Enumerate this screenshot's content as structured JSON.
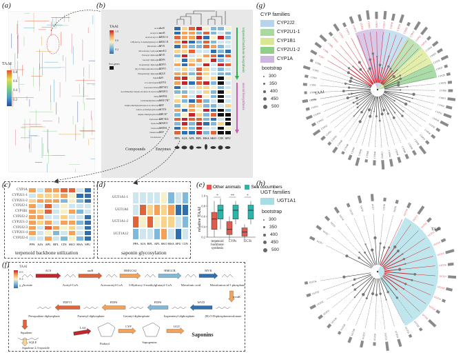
{
  "panels": {
    "a": "(a)",
    "b": "(b)",
    "c": "(c)",
    "d": "(d)",
    "e": "(e)",
    "f": "(f)",
    "g": "(g)",
    "h": "(h)"
  },
  "panel_a": {
    "legend_title": "TAAI",
    "ticks": [
      "0.8",
      "0.6",
      "0.4",
      "0.2"
    ]
  },
  "panel_b": {
    "legend_title": "TAAI",
    "legend_ticks": [
      "1.0",
      "0.8",
      "0.6",
      "0.4",
      "0.2",
      "0.0"
    ],
    "lost_label": "lost genes",
    "compounds": [
      "Acetate",
      "Acetyl-CoA",
      "Acetoacetyl-CoA",
      "3-Hydroxy-3-methylglutaryl-CoA",
      "Mevalonic acid",
      "Mevalonate-5-phosphate",
      "Farnesyl diphosphate",
      "Geranyl diphosphate",
      "Isopentenyl diphosphate",
      "(R)-5-Diphosphomevalonate",
      "Phosphatidyl diphosphate",
      "Squalene",
      "2,3-oxidosqualene",
      "Lanosterol/Parkeol",
      "4,4-Dimethyl-5alpha-cholesta-8,14,24-trien-3beta-ol",
      "14-Demethyllanosterol",
      "4alpha-Methylzymosterol-4-carboxylate",
      "3-Keto-4-methylzymosterol",
      "4alpha-Methylzymosterol",
      "Zymosterone",
      "Zymosterol",
      "Cholesterol",
      "Desmosterol",
      "Cholestenol"
    ],
    "enzymes": [
      "AtoB",
      "mvaB",
      "HMGCS",
      "HMGCR",
      "MVK",
      "mvaK2",
      "MVD",
      "FDPS",
      "FDFT1",
      "FDFT1",
      "SQLE",
      "LSS",
      "CYP51",
      "TM7SF2",
      "MSMO1",
      "NSDHL",
      "HSD17B7",
      "EBP",
      "SC5DL",
      "DHCR7",
      "DHCR24",
      "MSMO1",
      "NSDHL",
      "EBP"
    ],
    "columns": [
      "PPA",
      "AJA",
      "APL",
      "BFL",
      "HSA",
      "SKO",
      "CIN",
      "SPU"
    ],
    "side_top": "terpenoid backbone biosynthesis",
    "side_bottom": "steroid biosynthesis",
    "axis_compounds": "Compounds",
    "axis_enzymes": "Enzymes"
  },
  "panel_c": {
    "title": "terpenoid backbone utilization",
    "rows": [
      "CYP1A",
      "CYP2U1-1",
      "CYP2U1-2",
      "CYP2J2-1",
      "CYP1B1",
      "CYP2J2-2",
      "CYP2U1-3",
      "CYP2J2-3",
      "CYP2U1-4",
      "CYP2J2-4"
    ],
    "columns": [
      "PPA",
      "AJA",
      "APL",
      "BFL",
      "CIN",
      "SKO",
      "HSA",
      "SPU"
    ]
  },
  "panel_d": {
    "title": "saponin glycosylation",
    "rows": [
      "UGT1A1-1",
      "UGT1A6",
      "UGT1A1-2",
      "UGT1A12"
    ],
    "columns": [
      "PPA",
      "AJA",
      "BFL",
      "APL",
      "SKO",
      "HSA",
      "SPU",
      "CIN"
    ]
  },
  "panel_e": {
    "legend": [
      {
        "name": "Other animals",
        "color": "#e05a50"
      },
      {
        "name": "Sea cucumbers",
        "color": "#2bb5a8"
      }
    ],
    "ylabel": "relative TAAI",
    "yticks": [
      "0.2",
      "0.4",
      "0.6",
      "0.8",
      "1.0"
    ],
    "groups": [
      "terpenoid backbone synthesis",
      "CYPs",
      "UGTs"
    ],
    "significance": [
      "*",
      "**",
      "*"
    ]
  },
  "panel_f": {
    "legend_title": "TAAI",
    "legend_ticks": [
      "0.6",
      "0.4",
      "0.2"
    ],
    "row1": [
      "Acetate",
      "Acetyl-CoA",
      "Acetoacetyl-CoA",
      "3-Hydroxy-3-methylglutaryl-CoA",
      "Mevalonic acid",
      "Mevalonicacid 5 phosphate"
    ],
    "row1_enzymes": [
      "ACS",
      "atoB",
      "HMGCS2",
      "HMGCR",
      "MVK"
    ],
    "row2": [
      "Presqualene diphosphate",
      "Farnesyl diphosphate",
      "Geranyl diphosphate",
      "Isopentenyl diphosphate",
      "(R)-5-Diphosphomevalonate"
    ],
    "row2_enzymes": [
      "FDFT1",
      "FDPS",
      "FDPS",
      "MVD",
      "mvaK"
    ],
    "row3": [
      "Squalene",
      "Squalene 2,3-epoxide",
      "Parkeol",
      "Sapogenins",
      "Saponins"
    ],
    "row3_enzymes": [
      "FDFT1",
      "SQLE",
      "LAS",
      "CYP",
      "UGT"
    ]
  },
  "panel_g": {
    "legend_title": "CYP families",
    "families": [
      {
        "name": "CYP2J2",
        "color": "#b6d5ec"
      },
      {
        "name": "CYP2U1-1",
        "color": "#a9d9a0"
      },
      {
        "name": "CYP1B1",
        "color": "#d9e890"
      },
      {
        "name": "CYP2U1-2",
        "color": "#8fcf8a"
      },
      {
        "name": "CYP1A",
        "color": "#cdb6e0"
      }
    ],
    "bootstrap_title": "bootstrap",
    "bootstrap": [
      "300",
      "350",
      "400",
      "450",
      "500"
    ],
    "taai_label": "TAAI"
  },
  "panel_h": {
    "legend_title": "UGT families",
    "families": [
      {
        "name": "UGT1A1",
        "color": "#a9dde6"
      }
    ],
    "bootstrap_title": "bootstrap",
    "bootstrap": [
      "300",
      "350",
      "400",
      "450",
      "500"
    ],
    "taai_label": "TAAI"
  }
}
